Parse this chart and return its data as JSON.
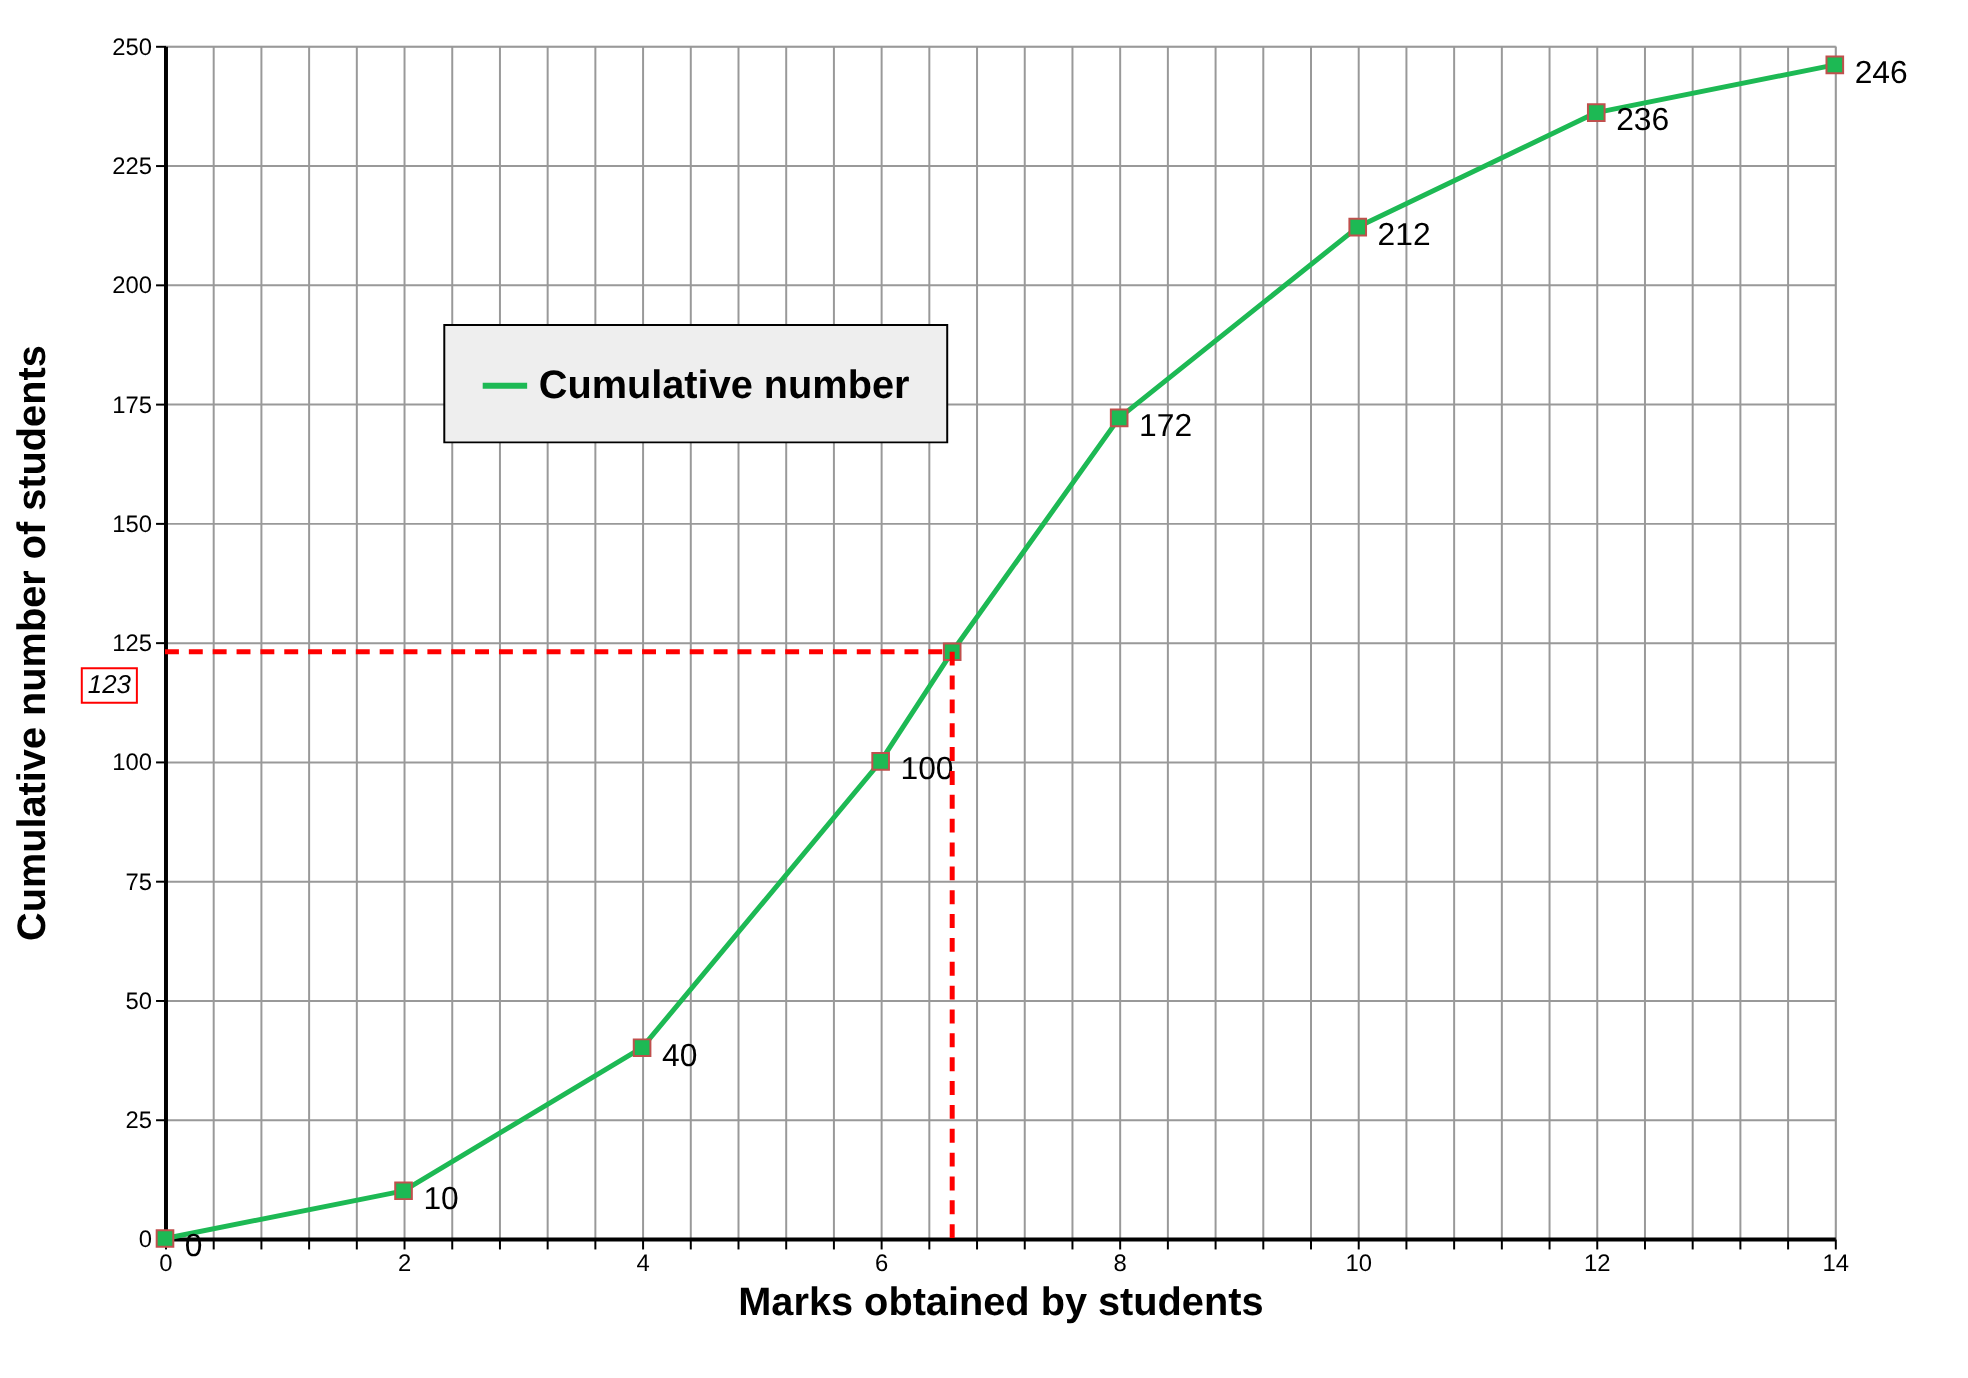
{
  "chart_data": {
    "type": "line",
    "xlabel": "Marks obtained by students",
    "ylabel": "Cumulative  number  of students",
    "series": [
      {
        "name": "Cumulative number",
        "color": "#1db954",
        "x": [
          0,
          2,
          4,
          6,
          6.6,
          8,
          10,
          12,
          14
        ],
        "values": [
          0,
          10,
          40,
          100,
          123,
          172,
          212,
          236,
          246
        ],
        "value_labels": [
          "0",
          "10",
          "40",
          "100",
          null,
          "172",
          "212",
          "236",
          "246"
        ],
        "marker": "square",
        "line_style": "solid"
      },
      {
        "type": "line",
        "color": "#ff0000",
        "x": [
          0,
          6.6,
          6.6
        ],
        "values": [
          123,
          123,
          0
        ],
        "marker": "none",
        "line_style": "dashed"
      }
    ],
    "annotations": [
      {
        "text": "123",
        "x": 0,
        "y": 123
      }
    ],
    "xlim": [
      0,
      14
    ],
    "xticks": [
      0,
      {
        "value": 0.4,
        "label": null
      },
      {
        "value": 0.8,
        "label": null
      },
      {
        "value": 1.2,
        "label": null
      },
      {
        "value": 1.6,
        "label": null
      },
      2,
      {
        "value": 2.4,
        "label": null
      },
      {
        "value": 2.8,
        "label": null
      },
      {
        "value": 3.2,
        "label": null
      },
      {
        "value": 3.6,
        "label": null
      },
      4,
      {
        "value": 4.4,
        "label": null
      },
      {
        "value": 4.8,
        "label": null
      },
      {
        "value": 5.2,
        "label": null
      },
      {
        "value": 5.6,
        "label": null
      },
      6,
      {
        "value": 6.4,
        "label": null
      },
      {
        "value": 6.8,
        "label": null
      },
      {
        "value": 7.2,
        "label": null
      },
      {
        "value": 7.6,
        "label": null
      },
      8,
      {
        "value": 8.4,
        "label": null
      },
      {
        "value": 8.8,
        "label": null
      },
      {
        "value": 9.2,
        "label": null
      },
      {
        "value": 9.6,
        "label": null
      },
      10,
      {
        "value": 10.4,
        "label": null
      },
      {
        "value": 10.8,
        "label": null
      },
      {
        "value": 11.2,
        "label": null
      },
      {
        "value": 11.6,
        "label": null
      },
      12,
      {
        "value": 12.4,
        "label": null
      },
      {
        "value": 12.8,
        "label": null
      },
      {
        "value": 13.2,
        "label": null
      },
      {
        "value": 13.6,
        "label": null
      },
      14
    ],
    "ylim": [
      0,
      250
    ],
    "yticks": [
      0,
      25,
      50,
      75,
      100,
      125,
      150,
      175,
      200,
      225,
      250
    ],
    "grid": true,
    "legend": "top left"
  }
}
